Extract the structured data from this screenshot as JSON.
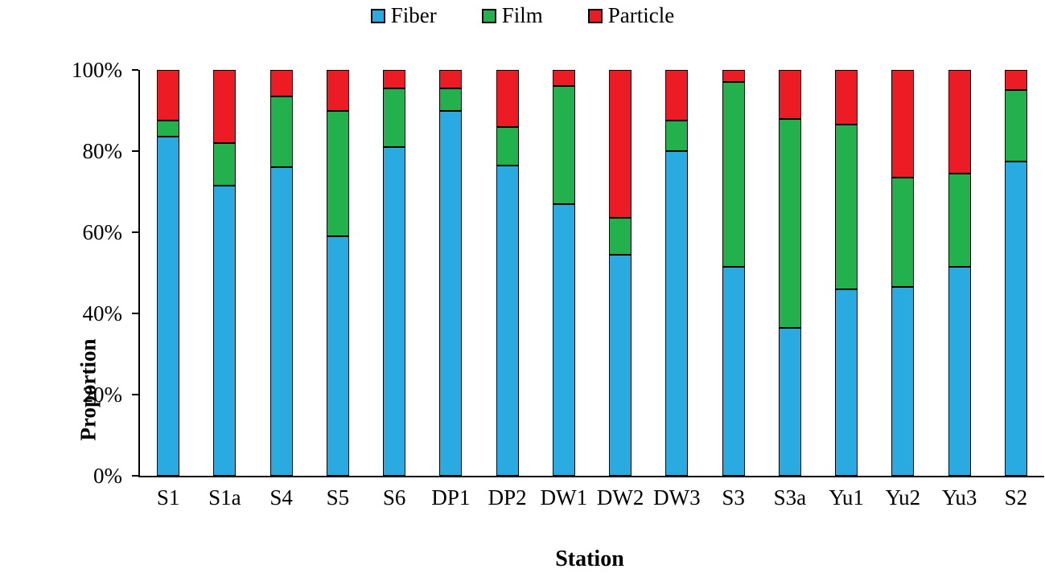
{
  "chart_data": {
    "type": "bar",
    "subtype": "stacked-100-percent",
    "title": "",
    "xlabel": "Station",
    "ylabel": "Proportion",
    "categories": [
      "S1",
      "S1a",
      "S4",
      "S5",
      "S6",
      "DP1",
      "DP2",
      "DW1",
      "DW2",
      "DW3",
      "S3",
      "S3a",
      "Yu1",
      "Yu2",
      "Yu3",
      "S2"
    ],
    "series": [
      {
        "name": "Fiber",
        "color": "#29ABE2",
        "values": [
          83.5,
          71.5,
          76.0,
          59.0,
          81.0,
          90.0,
          76.5,
          67.0,
          54.5,
          80.0,
          51.5,
          36.5,
          46.0,
          46.5,
          51.5,
          77.5
        ]
      },
      {
        "name": "Film",
        "color": "#22B14C",
        "values": [
          4.0,
          10.5,
          17.5,
          31.0,
          14.5,
          5.5,
          9.5,
          29.0,
          9.0,
          7.5,
          45.5,
          51.5,
          40.5,
          27.0,
          23.0,
          17.5
        ]
      },
      {
        "name": "Particle",
        "color": "#ED1C24",
        "values": [
          12.5,
          18.0,
          6.5,
          10.0,
          4.5,
          4.5,
          14.0,
          4.0,
          36.5,
          12.5,
          3.0,
          12.0,
          13.5,
          26.5,
          25.5,
          5.0
        ]
      }
    ],
    "yticks": [
      "0%",
      "20%",
      "40%",
      "60%",
      "80%",
      "100%"
    ],
    "ylim": [
      0,
      100
    ],
    "legend_position": "top-center",
    "grid": false,
    "bar_outline_color": "#000000",
    "axis_color": "#000000"
  }
}
